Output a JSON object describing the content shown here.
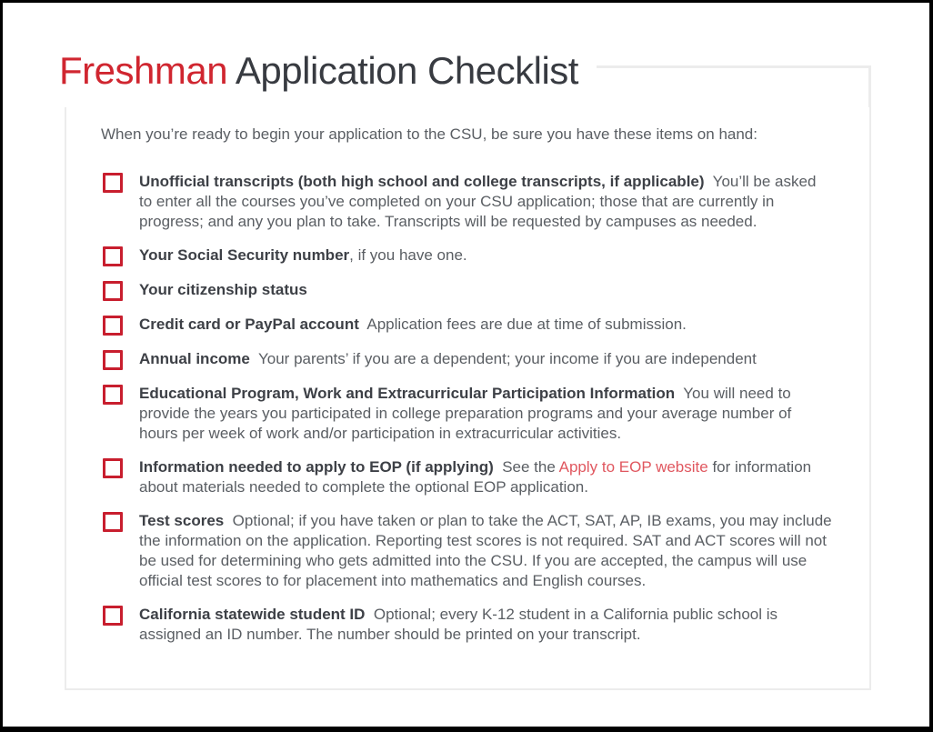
{
  "page": {
    "title": {
      "highlight": "Freshman",
      "rest": "Application Checklist"
    },
    "intro": "When you’re ready to begin your application to the CSU, be sure you have these items on hand:",
    "items": [
      {
        "label": "Unofficial transcripts (both high school and college transcripts, if applicable)",
        "desc": "  You’ll be asked to enter all the courses you’ve completed on your CSU application; those that are currently in progress; and any you plan to take. Transcripts will be requested by campuses as needed."
      },
      {
        "label": "Your Social Security number",
        "desc": ", if you have one."
      },
      {
        "label": "Your citizenship status",
        "desc": ""
      },
      {
        "label": "Credit card or PayPal account",
        "desc": "  Application fees are due at time of submission."
      },
      {
        "label": "Annual income",
        "desc": "  Your parents’ if you are a dependent; your income if you are independent"
      },
      {
        "label": "Educational Program, Work and Extracurricular Participation Information",
        "desc": "  You will need to provide the years you participated in college preparation programs and your average number of hours per week of work and/or participation in extracurricular activities."
      },
      {
        "label": "Information needed to apply to EOP (if applying)",
        "desc_before": "  See the ",
        "link": "Apply to EOP website",
        "desc_after": " for information about materials needed to complete the optional EOP application."
      },
      {
        "label": "Test scores",
        "desc": "  Optional; if you have taken or plan to take the ACT, SAT, AP, IB exams, you may include the information on the application. Reporting test scores is not required. SAT and ACT scores will not be used for determining who gets admitted into the CSU. If you are accepted, the campus will use official test scores to for placement into mathematics and English courses."
      },
      {
        "label": "California statewide student ID",
        "desc": "  Optional; every K-12 student in a California public school is assigned an ID number. The number should be printed on your transcript."
      }
    ],
    "colors": {
      "accent_red": "#d02630",
      "checkbox_red": "#c81e2e",
      "link_red": "#e0575f",
      "border_gray": "#ececec",
      "body_text": "#5a5e63",
      "heading_text": "#383b41"
    }
  }
}
